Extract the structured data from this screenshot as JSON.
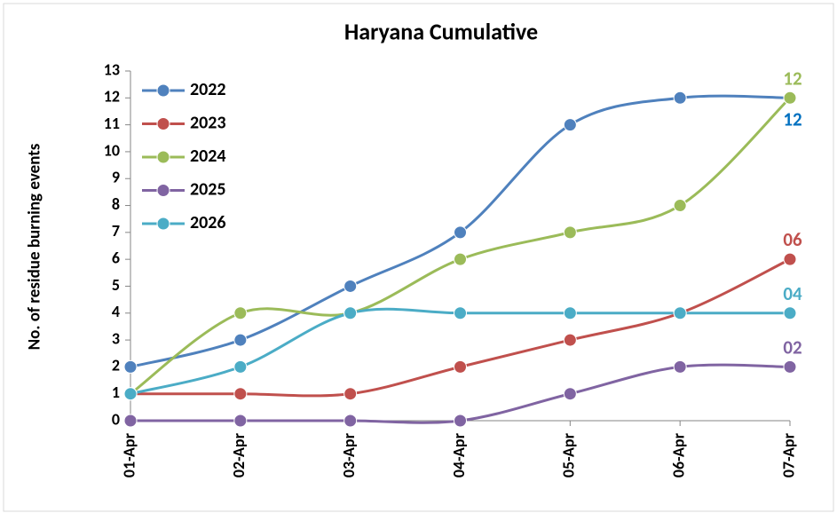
{
  "chart_data": {
    "type": "line",
    "title": "Haryana Cumulative",
    "y_label": "No. of residue burning events",
    "categories": [
      "01-Apr",
      "02-Apr",
      "03-Apr",
      "04-Apr",
      "05-Apr",
      "06-Apr",
      "07-Apr"
    ],
    "series": [
      {
        "name": "2022",
        "color": "#4f81bd",
        "label_color": "#0070c0",
        "values": [
          2,
          3,
          5,
          7,
          11,
          12,
          12
        ],
        "value_labels": [
          null,
          null,
          null,
          null,
          null,
          null,
          "12"
        ]
      },
      {
        "name": "2023",
        "color": "#c0504d",
        "label_color": "#c0504d",
        "values": [
          1,
          1,
          1,
          2,
          3,
          4,
          6
        ],
        "value_labels": [
          null,
          null,
          null,
          null,
          null,
          null,
          "06"
        ]
      },
      {
        "name": "2024",
        "color": "#9bbb59",
        "label_color": "#9bbb59",
        "values": [
          1,
          4,
          4,
          6,
          7,
          8,
          12
        ],
        "value_labels": [
          null,
          null,
          null,
          null,
          null,
          null,
          "12"
        ]
      },
      {
        "name": "2025",
        "color": "#8064a2",
        "label_color": "#8064a2",
        "values": [
          0,
          0,
          0,
          0,
          1,
          2,
          2
        ],
        "value_labels": [
          null,
          null,
          null,
          null,
          null,
          null,
          "02"
        ]
      },
      {
        "name": "2026",
        "color": "#4bacc6",
        "label_color": "#4bacc6",
        "values": [
          1,
          2,
          4,
          4,
          4,
          4,
          4
        ],
        "value_labels": [
          null,
          null,
          null,
          null,
          null,
          null,
          "04"
        ]
      }
    ],
    "ylim": [
      0,
      13
    ],
    "yticks": [
      0,
      1,
      2,
      3,
      4,
      5,
      6,
      7,
      8,
      9,
      10,
      11,
      12,
      13
    ],
    "smooth": true,
    "grid": false,
    "legend": "top-left"
  }
}
